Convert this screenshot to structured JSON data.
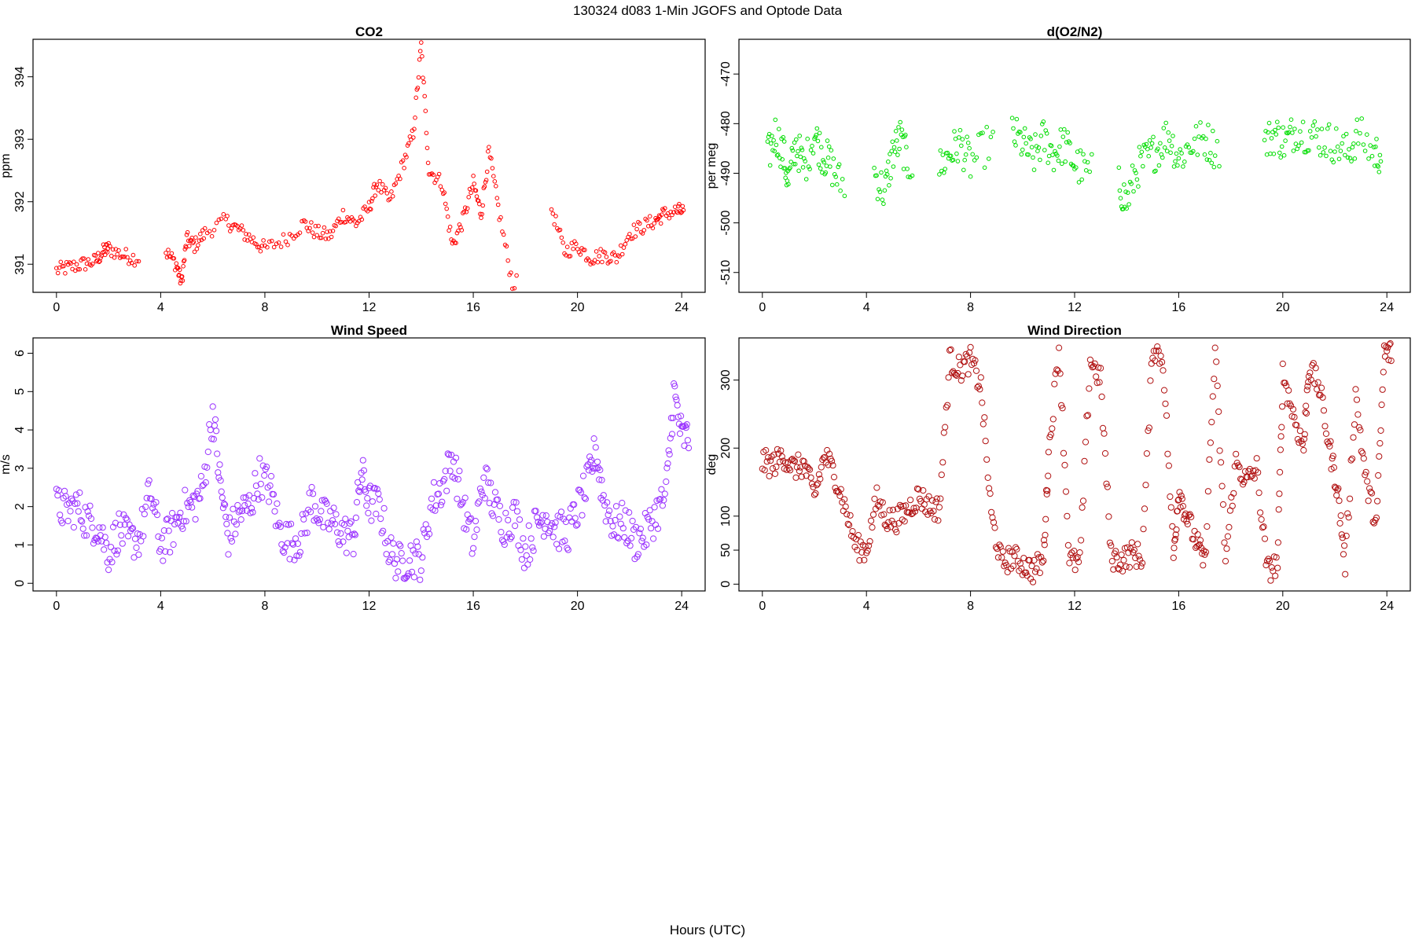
{
  "figure": {
    "title": "130324   d083   1-Min  JGOFS and Optode Data",
    "xlabel": "Hours (UTC)"
  },
  "chart_data": [
    {
      "id": "co2",
      "type": "scatter",
      "title": "CO2",
      "xlabel": "",
      "ylabel": "ppm",
      "color": "#ff0000",
      "marker_size": "small",
      "xlim": [
        -0.9,
        24.9
      ],
      "ylim": [
        390.55,
        394.6
      ],
      "xticks": [
        0,
        4,
        8,
        12,
        16,
        20,
        24
      ],
      "yticks": [
        391,
        392,
        393,
        394
      ],
      "x": [
        0,
        0.5,
        1,
        1.5,
        1.8,
        2,
        2.5,
        3,
        4.2,
        4.6,
        4.8,
        5,
        5.3,
        5.7,
        6.5,
        7,
        7.5,
        8,
        8.8,
        9.5,
        10,
        10.5,
        11,
        11.5,
        12,
        12.3,
        12.8,
        13.3,
        13.7,
        14,
        14.3,
        14.8,
        15.2,
        15.6,
        16,
        16.3,
        16.6,
        17,
        17.5,
        19,
        19.5,
        20,
        20.5,
        21,
        21.5,
        22,
        22.5,
        23,
        23.3,
        23.8
      ],
      "y": [
        390.9,
        390.95,
        391.0,
        391.05,
        391.2,
        391.25,
        391.15,
        391.1,
        391.2,
        391.0,
        390.7,
        391.4,
        391.3,
        391.5,
        391.7,
        391.55,
        391.4,
        391.25,
        391.4,
        391.65,
        391.5,
        391.45,
        391.8,
        391.65,
        391.9,
        392.3,
        392.0,
        392.6,
        393.1,
        394.5,
        392.5,
        392.3,
        391.3,
        391.7,
        392.3,
        391.8,
        392.8,
        391.8,
        390.7,
        391.9,
        391.2,
        391.3,
        391.1,
        391.15,
        391.1,
        391.5,
        391.6,
        391.7,
        391.8,
        391.85
      ]
    },
    {
      "id": "do2n2",
      "type": "scatter",
      "title": "d(O2/N2)",
      "xlabel": "",
      "ylabel": "per meg",
      "color": "#00dd00",
      "marker_size": "small",
      "xlim": [
        -0.9,
        24.9
      ],
      "ylim": [
        -514,
        -463
      ],
      "xticks": [
        0,
        4,
        8,
        12,
        16,
        20,
        24
      ],
      "yticks": [
        -470,
        -480,
        -490,
        -500,
        -510
      ],
      "x": [
        0.2,
        0.5,
        0.8,
        1,
        1.3,
        1.6,
        2,
        2.3,
        2.6,
        3,
        4.3,
        4.7,
        5,
        5.3,
        5.6,
        6.8,
        7.2,
        7.6,
        8,
        8.7,
        9.6,
        10,
        10.4,
        10.8,
        11.2,
        11.6,
        12,
        12.5,
        13.7,
        14,
        14.4,
        14.8,
        15.2,
        15.6,
        16,
        16.5,
        17,
        17.4,
        19.3,
        19.7,
        20.1,
        20.5,
        21,
        21.5,
        22,
        22.5,
        22.9,
        23.5
      ],
      "y": [
        -487,
        -482,
        -486,
        -492,
        -484,
        -489,
        -482,
        -486,
        -488,
        -492,
        -490,
        -494,
        -486,
        -483,
        -488,
        -489,
        -486,
        -484,
        -488,
        -484,
        -482,
        -484,
        -487,
        -483,
        -486,
        -484,
        -488,
        -490,
        -492,
        -496,
        -489,
        -487,
        -485,
        -482,
        -487,
        -484,
        -483,
        -485,
        -484,
        -482,
        -484,
        -481,
        -482,
        -483,
        -484,
        -486,
        -482,
        -486
      ]
    },
    {
      "id": "wspd",
      "type": "scatter",
      "title": "Wind Speed",
      "xlabel": "",
      "ylabel": "m/s",
      "color": "#9a32ff",
      "marker_size": "large",
      "xlim": [
        -0.9,
        24.9
      ],
      "ylim": [
        -0.2,
        6.4
      ],
      "xticks": [
        0,
        4,
        8,
        12,
        16,
        20,
        24
      ],
      "yticks": [
        0,
        1,
        2,
        3,
        4,
        5,
        6
      ],
      "x": [
        0,
        0.4,
        0.8,
        1.2,
        1.6,
        2,
        2.4,
        2.8,
        3.2,
        3.6,
        4,
        4.4,
        4.8,
        5.2,
        5.6,
        6,
        6.3,
        6.6,
        7,
        7.4,
        7.8,
        8.2,
        8.6,
        9,
        9.4,
        9.8,
        10.2,
        10.6,
        11,
        11.4,
        11.7,
        12,
        12.4,
        12.8,
        13.2,
        13.6,
        14,
        14.4,
        14.8,
        15.2,
        15.6,
        16,
        16.4,
        16.8,
        17.2,
        17.6,
        18,
        18.4,
        18.8,
        19.2,
        19.6,
        20,
        20.4,
        20.7,
        21,
        21.4,
        21.8,
        22.2,
        22.6,
        23,
        23.4,
        23.7,
        24
      ],
      "y": [
        2.0,
        1.9,
        2.0,
        1.6,
        1.5,
        0.8,
        1.4,
        1.1,
        1.2,
        2.4,
        1.0,
        1.3,
        1.9,
        2.0,
        2.4,
        4.5,
        2.5,
        1.2,
        1.8,
        2.0,
        2.8,
        2.5,
        1.3,
        1.1,
        1.2,
        2.2,
        1.7,
        1.6,
        1.3,
        1.2,
        2.9,
        2.1,
        2.0,
        0.8,
        0.5,
        0.7,
        0.6,
        2.1,
        2.5,
        3.3,
        2.0,
        1.0,
        2.8,
        2.0,
        1.5,
        1.8,
        0.8,
        1.5,
        1.8,
        1.4,
        1.3,
        1.9,
        2.6,
        3.5,
        2.2,
        1.5,
        1.6,
        1.1,
        1.3,
        1.8,
        2.3,
        5.0,
        3.8
      ]
    },
    {
      "id": "wdir",
      "type": "scatter",
      "title": "Wind Direction",
      "xlabel": "",
      "ylabel": "deg",
      "color": "#b01010",
      "marker_size": "large",
      "xlim": [
        -0.9,
        24.9
      ],
      "ylim": [
        -10,
        362
      ],
      "xticks": [
        0,
        4,
        8,
        12,
        16,
        20,
        24
      ],
      "yticks": [
        0,
        50,
        100,
        200,
        300
      ],
      "x": [
        0,
        0.4,
        0.8,
        1.2,
        1.6,
        2,
        2.4,
        2.8,
        3.2,
        3.6,
        4,
        4.4,
        4.8,
        5.2,
        5.6,
        6,
        6.4,
        6.8,
        7.2,
        7.6,
        8,
        8.4,
        8.8,
        9.2,
        9.6,
        10,
        10.4,
        10.8,
        11,
        11.4,
        11.8,
        12.2,
        12.6,
        13,
        13.4,
        13.8,
        14.2,
        14.6,
        15,
        15.4,
        15.8,
        16,
        16.3,
        16.7,
        17,
        17.4,
        17.8,
        18.2,
        18.6,
        19,
        19.4,
        19.8,
        20,
        20.4,
        20.8,
        21,
        21.4,
        21.8,
        22.1,
        22.4,
        22.8,
        23.2,
        23.6,
        23.9
      ],
      "y": [
        180,
        175,
        190,
        170,
        175,
        130,
        190,
        160,
        110,
        55,
        50,
        125,
        95,
        95,
        110,
        130,
        115,
        110,
        330,
        315,
        330,
        290,
        100,
        30,
        40,
        30,
        20,
        35,
        190,
        350,
        35,
        30,
        330,
        300,
        40,
        35,
        45,
        40,
        350,
        330,
        40,
        140,
        100,
        60,
        30,
        345,
        35,
        180,
        150,
        170,
        20,
        30,
        310,
        250,
        200,
        320,
        290,
        200,
        140,
        30,
        280,
        150,
        90,
        340
      ]
    }
  ]
}
